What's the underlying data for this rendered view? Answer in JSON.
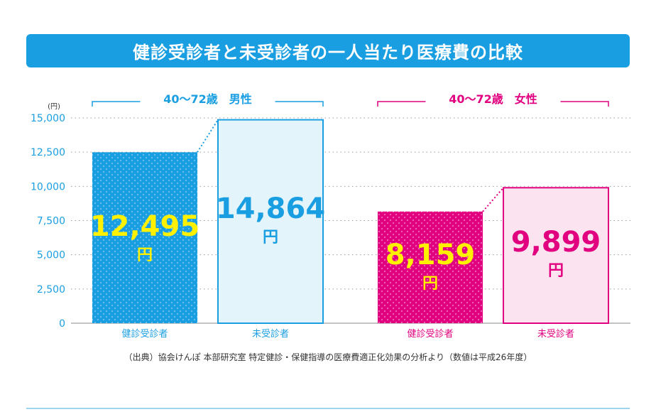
{
  "title": "健診受診者と未受診者の一人当たり医療費の比較",
  "source_note": "（出典）協会けんぽ 本部研究室 特定健診・保健指導の医療費適正化効果の分析より（数値は平成26年度）",
  "colors": {
    "title_bg": "#1a9ee2",
    "male_accent": "#1a9ee2",
    "male_light_fill": "#e3f4fb",
    "female_accent": "#e1007f",
    "female_light_fill": "#fbe3ef",
    "highlight_yellow": "#fff100",
    "axis_text": "#1a9ee2"
  },
  "chart_data": {
    "type": "bar",
    "unit": "(円)",
    "ylim": [
      0,
      15000
    ],
    "yticks": [
      0,
      2500,
      5000,
      7500,
      10000,
      12500,
      15000
    ],
    "ytick_labels": [
      "0",
      "2,500",
      "5,000",
      "7,500",
      "10,000",
      "12,500",
      "15,000"
    ],
    "grid": true,
    "groups": [
      {
        "label": "40～72歳　男性",
        "bars": [
          {
            "category": "健診受診者",
            "value": 12495,
            "value_label": "12,495",
            "unit_label": "円",
            "style": "dotted-solid"
          },
          {
            "category": "未受診者",
            "value": 14864,
            "value_label": "14,864",
            "unit_label": "円",
            "style": "light"
          }
        ]
      },
      {
        "label": "40～72歳　女性",
        "bars": [
          {
            "category": "健診受診者",
            "value": 8159,
            "value_label": "8,159",
            "unit_label": "円",
            "style": "dotted-solid"
          },
          {
            "category": "未受診者",
            "value": 9899,
            "value_label": "9,899",
            "unit_label": "円",
            "style": "light"
          }
        ]
      }
    ]
  }
}
